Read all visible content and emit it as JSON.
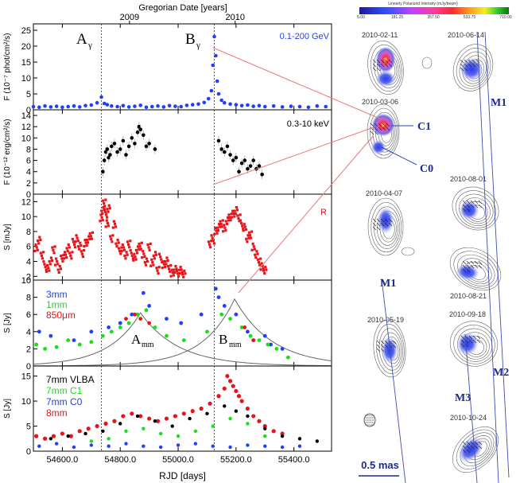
{
  "figure": {
    "top_axis_label": "Gregorian Date [years]",
    "top_ticks": [
      "2009",
      "2010"
    ],
    "x_axis_label": "RJD [days]",
    "x_ticks": [
      "54600.0",
      "54800.0",
      "55000.0",
      "55200.0",
      "55400.0"
    ],
    "flare_labels": {
      "a_gamma": "A",
      "b_gamma": "B",
      "gamma_sub": "γ",
      "a_mm": "A",
      "b_mm": "B",
      "mm_sub": "mm"
    },
    "colors": {
      "gamma": "#1f3fff",
      "xray": "#000000",
      "optical": "#e8141a",
      "mm3": "#1f3fff",
      "mm1": "#18e018",
      "um850": "#e8141a",
      "vlba": "#000000",
      "c1": "#18e018",
      "c0": "#1f3fff",
      "mm8": "#e8141a",
      "connector": "#e87a7a"
    }
  },
  "chart_data": [
    {
      "type": "scatter",
      "panel": "gamma",
      "ylabel": "F (10⁻⁷ phot/cm²/s)",
      "legend": "0.1-200 GeV",
      "y_ticks": [
        "0",
        "5",
        "10",
        "15",
        "20",
        "25"
      ],
      "ylim": [
        0,
        27
      ],
      "xlim": [
        54500,
        55530
      ],
      "x": [
        54500,
        54520,
        54540,
        54560,
        54580,
        54600,
        54620,
        54640,
        54660,
        54680,
        54700,
        54720,
        54735,
        54745,
        54755,
        54770,
        54790,
        54810,
        54830,
        54850,
        54870,
        54890,
        54910,
        54930,
        54950,
        54970,
        54990,
        55010,
        55030,
        55050,
        55070,
        55090,
        55105,
        55115,
        55120,
        55125,
        55130,
        55135,
        55140,
        55150,
        55160,
        55180,
        55200,
        55220,
        55240,
        55260,
        55280,
        55300,
        55330,
        55360,
        55390,
        55420,
        55450,
        55480,
        55510
      ],
      "y": [
        1.0,
        0.8,
        1.2,
        0.9,
        1.1,
        0.8,
        1.0,
        1.2,
        0.9,
        1.3,
        1.5,
        2.2,
        4.0,
        2.0,
        1.6,
        1.2,
        1.0,
        1.3,
        0.9,
        1.1,
        1.4,
        0.8,
        1.0,
        1.2,
        0.9,
        1.3,
        1.1,
        1.0,
        1.4,
        1.6,
        1.8,
        2.3,
        3.5,
        6.0,
        14.0,
        23.0,
        17.0,
        9.0,
        5.0,
        3.0,
        2.2,
        1.8,
        1.6,
        1.3,
        1.5,
        1.1,
        1.3,
        1.0,
        1.2,
        0.9,
        1.1,
        1.0,
        0.8,
        1.2,
        1.0
      ]
    },
    {
      "type": "scatter",
      "panel": "xray",
      "ylabel": "F (10⁻¹² erg/cm²/s)",
      "legend": "0.3-10 keV",
      "y_ticks": [
        "0",
        "2",
        "4",
        "6",
        "8",
        "10",
        "12",
        "14"
      ],
      "ylim": [
        0,
        15
      ],
      "xlim": [
        54500,
        55530
      ],
      "x": [
        54740,
        54745,
        54750,
        54755,
        54760,
        54765,
        54770,
        54780,
        54790,
        54800,
        54810,
        54820,
        54830,
        54840,
        54850,
        54860,
        54865,
        54870,
        54880,
        54890,
        54900,
        54920,
        55140,
        55150,
        55160,
        55170,
        55180,
        55190,
        55200,
        55210,
        55220,
        55230,
        55240,
        55250,
        55260,
        55270,
        55280,
        55290
      ],
      "y": [
        4.0,
        6.0,
        7.5,
        8.0,
        6.5,
        7.0,
        8.5,
        9.0,
        7.5,
        8.0,
        9.5,
        7.0,
        8.5,
        10.0,
        9.0,
        11.0,
        12.0,
        11.5,
        10.5,
        8.5,
        9.0,
        8.0,
        9.5,
        8.0,
        7.5,
        8.5,
        7.0,
        6.0,
        6.5,
        4.0,
        5.5,
        6.0,
        4.5,
        5.0,
        6.0,
        4.5,
        5.0,
        3.5
      ]
    },
    {
      "type": "scatter",
      "panel": "optical",
      "ylabel": "S [mJy]",
      "legend": "R",
      "y_ticks": [
        "2",
        "4",
        "6",
        "8",
        "10",
        "12"
      ],
      "ylim": [
        1.5,
        13
      ],
      "xlim": [
        54500,
        55530
      ],
      "x": [
        54510,
        54520,
        54530,
        54540,
        54550,
        54560,
        54570,
        54580,
        54590,
        54600,
        54610,
        54620,
        54630,
        54640,
        54650,
        54660,
        54670,
        54680,
        54690,
        54700,
        54735,
        54740,
        54745,
        54750,
        54755,
        54760,
        54770,
        54780,
        54790,
        54800,
        54810,
        54820,
        54830,
        54840,
        54850,
        54860,
        54870,
        54880,
        54890,
        54900,
        54910,
        54920,
        54930,
        54940,
        54950,
        54960,
        54970,
        54980,
        54990,
        55000,
        55010,
        55020,
        55110,
        55120,
        55130,
        55140,
        55150,
        55160,
        55170,
        55180,
        55190,
        55200,
        55210,
        55220,
        55230,
        55240,
        55250,
        55260,
        55270,
        55280,
        55290,
        55300
      ],
      "y": [
        6.0,
        7.0,
        5.0,
        3.5,
        3.0,
        4.0,
        5.5,
        4.0,
        3.0,
        4.5,
        5.0,
        6.0,
        5.0,
        6.5,
        7.0,
        6.0,
        5.0,
        6.5,
        7.0,
        7.5,
        10.0,
        11.0,
        12.0,
        10.5,
        9.0,
        11.0,
        7.0,
        9.0,
        6.5,
        5.5,
        6.0,
        5.0,
        6.5,
        5.0,
        4.5,
        5.5,
        6.0,
        5.0,
        4.0,
        6.0,
        4.0,
        5.0,
        3.0,
        4.5,
        3.5,
        4.0,
        3.0,
        2.5,
        3.0,
        2.5,
        3.0,
        2.5,
        6.5,
        7.0,
        8.0,
        8.5,
        9.0,
        8.5,
        9.5,
        10.0,
        10.5,
        11.0,
        10.0,
        9.0,
        8.5,
        7.0,
        7.5,
        6.0,
        5.0,
        4.0,
        3.5,
        3.0
      ]
    },
    {
      "type": "scatter",
      "panel": "mm",
      "ylabel": "S [Jy]",
      "y_ticks": [
        "0",
        "2",
        "4",
        "6",
        "8",
        "10"
      ],
      "ylim": [
        0,
        10
      ],
      "xlim": [
        54500,
        55530
      ],
      "legend": [
        "3mm",
        "1mm",
        "850μm"
      ],
      "series": [
        {
          "name": "3mm",
          "x": [
            54520,
            54560,
            54640,
            54700,
            54760,
            54800,
            54840,
            54880,
            54900,
            54960,
            55010,
            55080,
            55130,
            55140,
            55160,
            55200,
            55240,
            55260,
            55300,
            55320,
            55360
          ],
          "y": [
            4.0,
            3.5,
            3.0,
            4.0,
            4.5,
            5.0,
            6.0,
            8.5,
            7.0,
            5.5,
            5.0,
            6.0,
            9.0,
            8.0,
            7.0,
            6.0,
            4.0,
            3.0,
            3.5,
            2.5,
            2.0
          ]
        },
        {
          "name": "1mm",
          "x": [
            54510,
            54540,
            54580,
            54620,
            54660,
            54700,
            54740,
            54770,
            54800,
            54830,
            54860,
            54890,
            54920,
            54960,
            55020,
            55100,
            55150,
            55180,
            55220,
            55250,
            55280,
            55310,
            55340,
            55380
          ],
          "y": [
            2.5,
            2.0,
            2.2,
            3.0,
            2.5,
            2.8,
            3.5,
            4.0,
            4.5,
            5.0,
            6.0,
            6.5,
            4.5,
            3.5,
            3.0,
            4.0,
            6.0,
            5.5,
            4.5,
            3.5,
            3.0,
            2.5,
            2.0,
            1.0
          ]
        },
        {
          "name": "850μm",
          "x": [
            54820,
            54850,
            54870,
            54900,
            55230,
            55260
          ],
          "y": [
            5.5,
            6.0,
            5.5,
            5.0,
            4.5,
            3.0
          ]
        }
      ],
      "fits": [
        {
          "label": "A_mm",
          "peak_x": 54870,
          "peak_y": 6.2
        },
        {
          "label": "B_mm",
          "peak_x": 55195,
          "peak_y": 7.8
        }
      ]
    },
    {
      "type": "scatter",
      "panel": "vlba",
      "ylabel": "S [Jy]",
      "y_ticks": [
        "0",
        "5",
        "10",
        "15"
      ],
      "ylim": [
        0,
        17
      ],
      "xlim": [
        54500,
        55530
      ],
      "legend": [
        "7mm VLBA",
        "7mm C1",
        "7mm C0",
        "8mm"
      ],
      "series": [
        {
          "name": "7mm VLBA",
          "x": [
            54560,
            54620,
            54680,
            54740,
            54800,
            54860,
            54920,
            54980,
            55040,
            55100,
            55160,
            55200,
            55240,
            55300,
            55360,
            55420,
            55480
          ],
          "y": [
            2.5,
            3.0,
            3.5,
            4.0,
            5.5,
            7.0,
            6.0,
            5.0,
            6.5,
            7.5,
            9.0,
            8.0,
            7.0,
            4.5,
            3.0,
            2.5,
            2.0
          ]
        },
        {
          "name": "7mm C1",
          "x": [
            54700,
            54760,
            54820,
            54880,
            54940,
            55000,
            55060,
            55120,
            55180,
            55240,
            55300
          ],
          "y": [
            2.0,
            2.5,
            4.0,
            4.5,
            3.5,
            3.0,
            4.0,
            5.0,
            6.5,
            5.5,
            3.0
          ]
        },
        {
          "name": "7mm C0",
          "x": [
            54520,
            54580,
            54640,
            54700,
            54760,
            54820,
            54880,
            54940,
            55000,
            55060,
            55120,
            55180,
            55240,
            55300,
            55360,
            55420
          ],
          "y": [
            1.0,
            1.5,
            0.8,
            1.2,
            1.0,
            1.5,
            1.0,
            0.8,
            1.2,
            1.5,
            1.0,
            0.8,
            1.2,
            1.0,
            0.8,
            1.0
          ]
        },
        {
          "name": "8mm",
          "x": [
            54510,
            54540,
            54570,
            54600,
            54630,
            54660,
            54690,
            54720,
            54750,
            54780,
            54810,
            54840,
            54870,
            54900,
            54930,
            54960,
            54990,
            55020,
            55050,
            55080,
            55110,
            55140,
            55160,
            55170,
            55180,
            55190,
            55200,
            55210,
            55220,
            55240,
            55260,
            55280,
            55300,
            55330,
            55360
          ],
          "y": [
            3.0,
            2.5,
            3.0,
            3.5,
            3.0,
            4.0,
            4.5,
            5.0,
            5.5,
            6.0,
            7.0,
            7.5,
            7.0,
            6.5,
            6.0,
            6.5,
            7.0,
            7.5,
            8.0,
            8.5,
            9.5,
            11.0,
            12.5,
            15.0,
            14.0,
            13.0,
            12.0,
            11.0,
            10.0,
            8.5,
            7.0,
            6.0,
            5.0,
            4.0,
            3.5
          ]
        }
      ]
    }
  ],
  "vlbi": {
    "colorbar_title": "Linearly Polarized Intensity (mJy/beam)",
    "colorbar_ticks": [
      "5.00",
      "181.25",
      "357.50",
      "533.75",
      "710.00"
    ],
    "epochs": [
      "2010-02-11",
      "2010-03-06",
      "2010-04-07",
      "2010-05-19",
      "2010-06-14",
      "2010-08-01",
      "2010-08-21",
      "2010-09-18",
      "2010-10-24"
    ],
    "components": [
      "C1",
      "C0"
    ],
    "moving_components": [
      "M1",
      "M1",
      "M2",
      "M3"
    ],
    "scale_bar": "0.5 mas"
  }
}
